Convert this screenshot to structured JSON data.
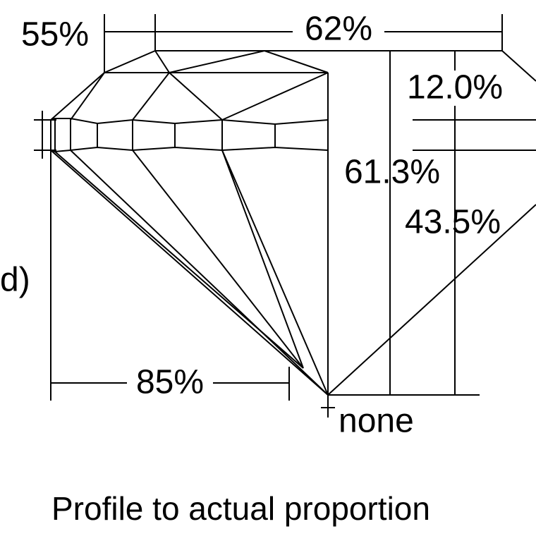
{
  "labels": {
    "crown_angle": "55%",
    "table": "62%",
    "crown_height": "12.0%",
    "total_depth": "61.3%",
    "pavilion_depth": "43.5%",
    "pavilion_width": "85%",
    "culet": "none",
    "left_fragment": "d)"
  },
  "caption": "Profile to actual proportion"
}
